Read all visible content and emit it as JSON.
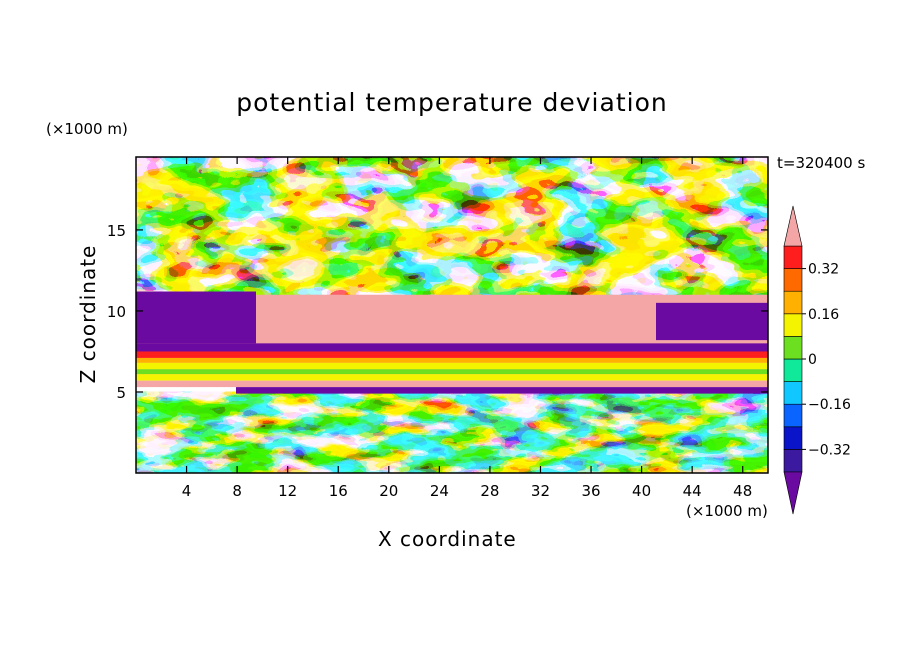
{
  "chart_data": {
    "type": "heatmap",
    "title": "potential temperature deviation",
    "xlabel": "X coordinate",
    "ylabel": "Z coordinate",
    "x_unit": "(×1000 m)",
    "y_unit": "(×1000 m)",
    "time_label": "t=320400 s",
    "xlim": [
      0,
      50
    ],
    "ylim": [
      0,
      19.5
    ],
    "x_ticks": [
      4,
      8,
      12,
      16,
      20,
      24,
      28,
      32,
      36,
      40,
      44,
      48
    ],
    "y_ticks": [
      5,
      10,
      15
    ],
    "colorbar": {
      "levels": [
        -0.4,
        -0.32,
        -0.24,
        -0.16,
        -0.08,
        0,
        0.08,
        0.16,
        0.24,
        0.32,
        0.4
      ],
      "labels": [
        "0.32",
        "0.16",
        "0",
        "−0.16",
        "−0.32"
      ],
      "label_values": [
        0.32,
        0.16,
        0,
        -0.16,
        -0.32
      ],
      "colors": [
        "#6a0aa0",
        "#3c1aa0",
        "#0a14c8",
        "#0a64ff",
        "#10c8ff",
        "#10e89a",
        "#6ce020",
        "#f4f400",
        "#ffb000",
        "#ff6a00",
        "#ff1e1e",
        "#f4a6a6"
      ],
      "extend": "both"
    },
    "regions": {
      "upper_band_z": [
        11,
        19.5
      ],
      "mid_band_z": [
        6,
        11
      ],
      "stable_layer_z": [
        5,
        7.5
      ],
      "lower_band_z": [
        0,
        5
      ]
    }
  }
}
